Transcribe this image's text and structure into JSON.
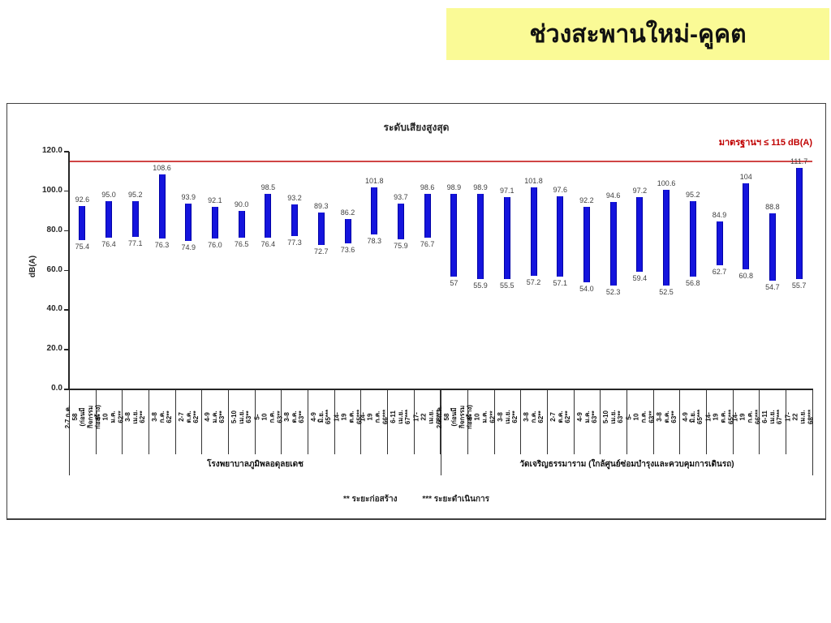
{
  "banner": {
    "title": "ช่วงสะพานใหม่-คูคต"
  },
  "colors": {
    "banner_bg": "#FAFA96",
    "bar": "#1414DD",
    "bar_edge": "#0000A6",
    "standard_text": "#C00000",
    "standard_line": "#D04545"
  },
  "footnote": {
    "construction": "**  ระยะก่อสร้าง",
    "operation": "***  ระยะดำเนินการ"
  },
  "chart_data": {
    "type": "bar",
    "subtype": "floating range bars (min–max noise level)",
    "title": "ระดับเสียงสูงสุด",
    "ylabel": "dB(A)",
    "ylim": [
      0,
      120
    ],
    "ytick_step": 20,
    "ytick_labels": [
      "0.0",
      "20.0",
      "40.0",
      "60.0",
      "80.0",
      "100.0",
      "120.0"
    ],
    "standard_line": {
      "value": 115,
      "label": "มาตรฐานฯ ≤ 115 dB(A)"
    },
    "grid": false,
    "legend": "none",
    "groups": [
      {
        "label": "โรงพยาบาลภูมิพลอดุลยเดช",
        "span": 14
      },
      {
        "label": "วัดเจริญธรรมาราม (ใกล้ศูนย์ซ่อมบำรุงและควบคุมการเดินรถ)",
        "span": 14
      }
    ],
    "points": [
      {
        "x": "2-7 ก.ค. 58\n(ก่อนมีกิจกรรมก่อสร้าง)",
        "lo": "75.4",
        "hi": "92.6"
      },
      {
        "x": "5-10 ม.ค. 62**",
        "lo": "76.4",
        "hi": "95.0"
      },
      {
        "x": "3-8 เม.ย. 62**",
        "lo": "77.1",
        "hi": "95.2"
      },
      {
        "x": "3-8 ก.ค. 62**",
        "lo": "76.3",
        "hi": "108.6"
      },
      {
        "x": "2-7 ต.ค. 62**",
        "lo": "74.9",
        "hi": "93.9"
      },
      {
        "x": "4-9 ม.ค. 63**",
        "lo": "76.0",
        "hi": "92.1"
      },
      {
        "x": "5-10 เม.ย. 63**",
        "lo": "76.5",
        "hi": "90.0"
      },
      {
        "x": "5-10 ก.ค. 63**",
        "lo": "76.4",
        "hi": "98.5"
      },
      {
        "x": "3-8 ต.ค. 63**",
        "lo": "77.3",
        "hi": "93.2"
      },
      {
        "x": "4-9 มิ.ย. 65***",
        "lo": "72.7",
        "hi": "89.3"
      },
      {
        "x": "14-19 ต.ค. 65***",
        "lo": "73.6",
        "hi": "86.2"
      },
      {
        "x": "14-19 ก.ค. 66***",
        "lo": "78.3",
        "hi": "101.8"
      },
      {
        "x": "6-11 เม.ย. 67***",
        "lo": "75.9",
        "hi": "93.7"
      },
      {
        "x": "17-22 เม.ย. 68***",
        "lo": "76.7",
        "hi": "98.6"
      },
      {
        "x": "2-7 ก.ค. 58\n(ก่อนมีกิจกรรมก่อสร้าง)",
        "lo": "57",
        "hi": "98.9"
      },
      {
        "x": "5-10 ม.ค. 62**",
        "lo": "55.9",
        "hi": "98.9"
      },
      {
        "x": "3-8 เม.ย. 62**",
        "lo": "55.5",
        "hi": "97.1"
      },
      {
        "x": "3-8 ก.ค. 62**",
        "lo": "57.2",
        "hi": "101.8"
      },
      {
        "x": "2-7 ต.ค. 62**",
        "lo": "57.1",
        "hi": "97.6"
      },
      {
        "x": "4-9 ม.ค. 63**",
        "lo": "54.0",
        "hi": "92.2"
      },
      {
        "x": "5-10 เม.ย. 63**",
        "lo": "52.3",
        "hi": "94.6"
      },
      {
        "x": "5-10 ก.ค. 63**",
        "lo": "59.4",
        "hi": "97.2"
      },
      {
        "x": "3-8 ต.ค. 63**",
        "lo": "52.5",
        "hi": "100.6"
      },
      {
        "x": "4-9 มิ.ย. 65***",
        "lo": "56.8",
        "hi": "95.2"
      },
      {
        "x": "14-19 ต.ค. 65***",
        "lo": "62.7",
        "hi": "84.9"
      },
      {
        "x": "14-19 ก.ค. 66***",
        "lo": "60.8",
        "hi": "104"
      },
      {
        "x": "6-11 เม.ย. 67***",
        "lo": "54.7",
        "hi": "88.8"
      },
      {
        "x": "17-22 เม.ย. 68***",
        "lo": "55.7",
        "hi": "111.7"
      }
    ]
  }
}
